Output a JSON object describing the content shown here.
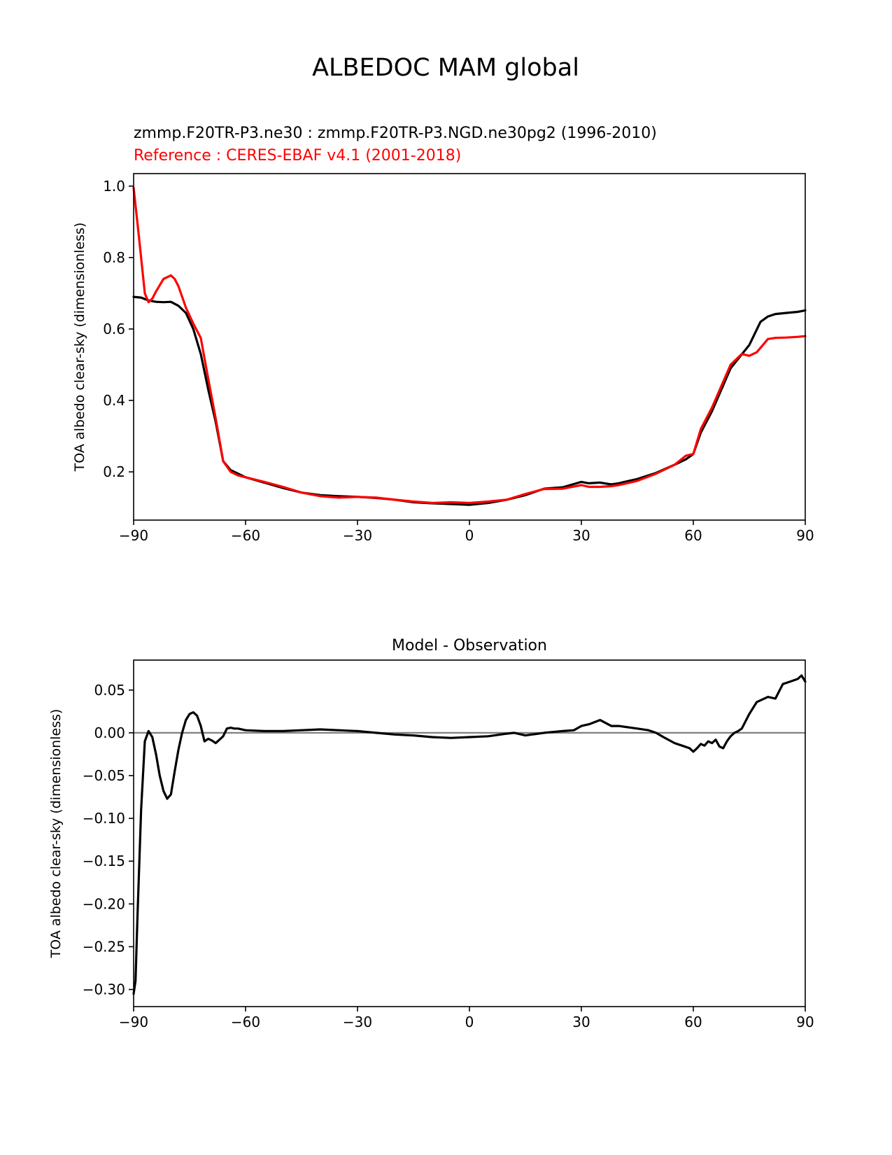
{
  "figure_title": "ALBEDOC MAM global",
  "colors": {
    "model": "#000000",
    "reference": "#ff0000",
    "zero_line": "#808080"
  },
  "chart_data": [
    {
      "type": "line",
      "title": "",
      "subtitle_model": "zmmp.F20TR-P3.ne30 : zmmp.F20TR-P3.NGD.ne30pg2 (1996-2010)",
      "subtitle_reference": "Reference : CERES-EBAF v4.1 (2001-2018)",
      "xlabel": "",
      "ylabel": "TOA albedo clear-sky (dimensionless)",
      "xlim": [
        -90,
        90
      ],
      "ylim": [
        0.065,
        1.035
      ],
      "xticks": [
        -90,
        -60,
        -30,
        0,
        30,
        60,
        90
      ],
      "xtick_labels": [
        "−90",
        "−60",
        "−30",
        "0",
        "30",
        "60",
        "90"
      ],
      "yticks": [
        0.2,
        0.4,
        0.6,
        0.8,
        1.0
      ],
      "ytick_labels": [
        "0.2",
        "0.4",
        "0.6",
        "0.8",
        "1.0"
      ],
      "grid": false,
      "series": [
        {
          "name": "model",
          "x": [
            -90,
            -88,
            -86,
            -84,
            -82,
            -80,
            -78,
            -76,
            -74,
            -72,
            -70,
            -68,
            -66,
            -64,
            -62,
            -60,
            -55,
            -50,
            -45,
            -40,
            -35,
            -30,
            -25,
            -20,
            -15,
            -10,
            -5,
            0,
            5,
            10,
            15,
            20,
            25,
            30,
            32,
            35,
            38,
            40,
            45,
            50,
            55,
            58,
            60,
            62,
            65,
            70,
            75,
            78,
            80,
            82,
            85,
            88,
            90
          ],
          "y": [
            0.69,
            0.688,
            0.68,
            0.676,
            0.675,
            0.676,
            0.665,
            0.645,
            0.6,
            0.53,
            0.43,
            0.34,
            0.23,
            0.205,
            0.195,
            0.185,
            0.17,
            0.155,
            0.142,
            0.135,
            0.132,
            0.13,
            0.127,
            0.122,
            0.115,
            0.112,
            0.11,
            0.108,
            0.113,
            0.122,
            0.135,
            0.153,
            0.157,
            0.172,
            0.168,
            0.17,
            0.165,
            0.168,
            0.18,
            0.197,
            0.22,
            0.235,
            0.25,
            0.31,
            0.37,
            0.49,
            0.555,
            0.62,
            0.635,
            0.642,
            0.645,
            0.648,
            0.652
          ]
        },
        {
          "name": "reference",
          "x": [
            -90,
            -89,
            -88,
            -87,
            -86,
            -85,
            -84,
            -82,
            -80,
            -79,
            -78,
            -76,
            -74,
            -72,
            -70,
            -68,
            -66,
            -64,
            -62,
            -60,
            -55,
            -50,
            -45,
            -40,
            -35,
            -30,
            -25,
            -20,
            -15,
            -10,
            -5,
            0,
            5,
            10,
            15,
            20,
            25,
            30,
            32,
            35,
            38,
            40,
            45,
            50,
            55,
            58,
            60,
            62,
            65,
            70,
            73,
            75,
            77,
            80,
            82,
            85,
            88,
            90
          ],
          "y": [
            0.995,
            0.9,
            0.8,
            0.7,
            0.675,
            0.685,
            0.705,
            0.74,
            0.75,
            0.74,
            0.72,
            0.66,
            0.615,
            0.575,
            0.46,
            0.35,
            0.23,
            0.2,
            0.19,
            0.185,
            0.172,
            0.158,
            0.142,
            0.132,
            0.128,
            0.13,
            0.128,
            0.122,
            0.117,
            0.113,
            0.115,
            0.113,
            0.117,
            0.122,
            0.138,
            0.152,
            0.153,
            0.163,
            0.158,
            0.158,
            0.16,
            0.163,
            0.175,
            0.195,
            0.22,
            0.245,
            0.25,
            0.32,
            0.38,
            0.5,
            0.53,
            0.525,
            0.535,
            0.572,
            0.575,
            0.576,
            0.578,
            0.58
          ]
        }
      ]
    },
    {
      "type": "line",
      "title": "Model - Observation",
      "xlabel": "",
      "ylabel": "TOA albedo clear-sky (dimensionless)",
      "xlim": [
        -90,
        90
      ],
      "ylim": [
        -0.32,
        0.085
      ],
      "xticks": [
        -90,
        -60,
        -30,
        0,
        30,
        60,
        90
      ],
      "xtick_labels": [
        "−90",
        "−60",
        "−30",
        "0",
        "30",
        "60",
        "90"
      ],
      "yticks": [
        0.05,
        0.0,
        -0.05,
        -0.1,
        -0.15,
        -0.2,
        -0.25,
        -0.3
      ],
      "ytick_labels": [
        "0.05",
        "0.00",
        "−0.05",
        "−0.10",
        "−0.15",
        "−0.20",
        "−0.25",
        "−0.30"
      ],
      "reference_line": 0.0,
      "grid": false,
      "series": [
        {
          "name": "difference",
          "x": [
            -90,
            -89.5,
            -89,
            -88,
            -87,
            -86,
            -85,
            -84,
            -83,
            -82,
            -81,
            -80,
            -79,
            -78,
            -77,
            -76,
            -75,
            -74,
            -73,
            -72,
            -71,
            -70,
            -69,
            -68,
            -67,
            -66,
            -65,
            -64,
            -63,
            -62,
            -60,
            -55,
            -50,
            -45,
            -40,
            -35,
            -30,
            -25,
            -20,
            -15,
            -10,
            -5,
            0,
            5,
            10,
            12,
            15,
            20,
            25,
            28,
            30,
            32,
            35,
            38,
            40,
            45,
            48,
            50,
            52,
            55,
            57,
            59,
            60,
            61,
            62,
            63,
            64,
            65,
            66,
            67,
            68,
            69,
            70,
            71,
            72,
            73,
            75,
            77,
            80,
            82,
            84,
            86,
            88,
            89,
            90
          ],
          "y": [
            -0.305,
            -0.29,
            -0.22,
            -0.09,
            -0.01,
            0.002,
            -0.005,
            -0.025,
            -0.05,
            -0.068,
            -0.077,
            -0.072,
            -0.045,
            -0.02,
            0.0,
            0.015,
            0.022,
            0.024,
            0.02,
            0.008,
            -0.01,
            -0.007,
            -0.009,
            -0.012,
            -0.008,
            -0.004,
            0.005,
            0.006,
            0.005,
            0.005,
            0.003,
            0.002,
            0.002,
            0.003,
            0.004,
            0.003,
            0.002,
            0.0,
            -0.002,
            -0.003,
            -0.005,
            -0.006,
            -0.005,
            -0.004,
            -0.001,
            0.0,
            -0.003,
            0.0,
            0.002,
            0.003,
            0.008,
            0.01,
            0.015,
            0.008,
            0.008,
            0.005,
            0.003,
            0.0,
            -0.005,
            -0.012,
            -0.015,
            -0.018,
            -0.022,
            -0.018,
            -0.013,
            -0.015,
            -0.01,
            -0.012,
            -0.008,
            -0.016,
            -0.018,
            -0.01,
            -0.004,
            0.0,
            0.002,
            0.005,
            0.022,
            0.036,
            0.042,
            0.04,
            0.057,
            0.06,
            0.063,
            0.067,
            0.06
          ]
        }
      ]
    }
  ]
}
